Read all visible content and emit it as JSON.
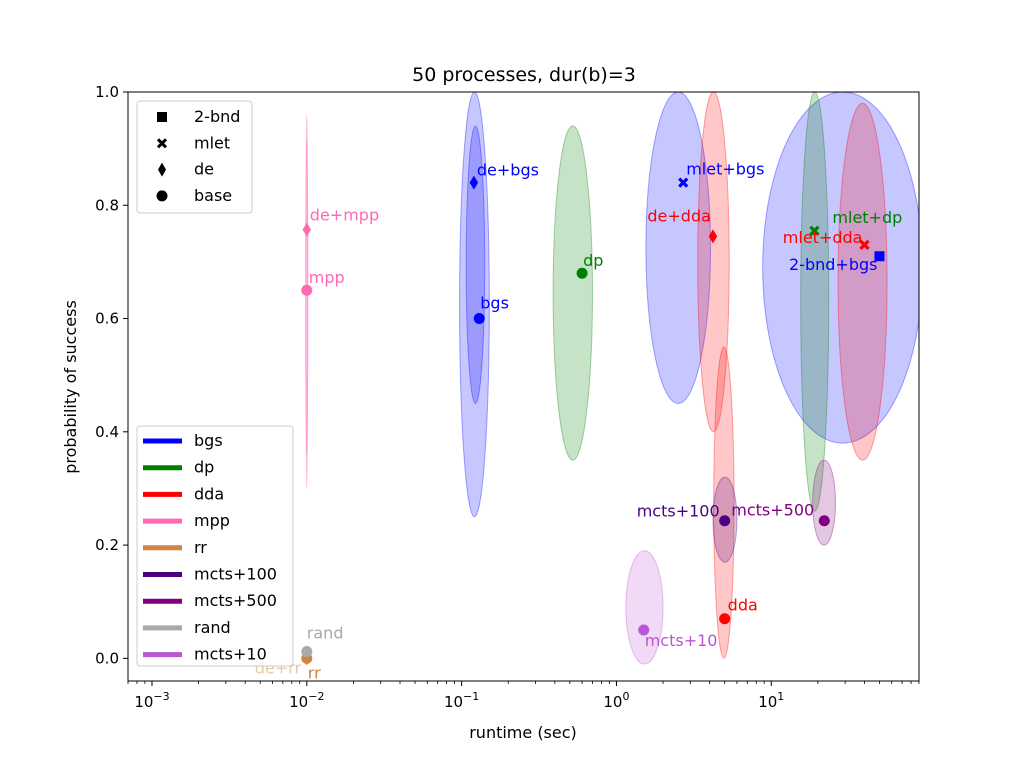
{
  "chart_data": {
    "type": "scatter",
    "title": "50 processes, dur(b)=3",
    "xlabel": "runtime (sec)",
    "ylabel": "probability of success",
    "xscale": "log",
    "xlim": [
      0.0007,
      90
    ],
    "ylim": [
      -0.04,
      1.0
    ],
    "xticks": [
      {
        "value": 0.001,
        "base": "10",
        "exp": "−3"
      },
      {
        "value": 0.01,
        "base": "10",
        "exp": "−2"
      },
      {
        "value": 0.1,
        "base": "10",
        "exp": "−1"
      },
      {
        "value": 1,
        "base": "10",
        "exp": "0"
      },
      {
        "value": 10,
        "base": "10",
        "exp": "1"
      }
    ],
    "yticks": [
      {
        "value": 0.0,
        "label": "0.0"
      },
      {
        "value": 0.2,
        "label": "0.2"
      },
      {
        "value": 0.4,
        "label": "0.4"
      },
      {
        "value": 0.6,
        "label": "0.6"
      },
      {
        "value": 0.8,
        "label": "0.8"
      },
      {
        "value": 1.0,
        "label": "1.0"
      }
    ],
    "colors": {
      "bgs": "#0000ff",
      "dp": "#008000",
      "dda": "#ff0000",
      "mpp": "#ff69b4",
      "rr": "#cd853f",
      "mcts+100": "#4b0082",
      "mcts+500": "#800080",
      "rand": "#a9a9a9",
      "mcts+10": "#ba55d3"
    },
    "marker_legend": [
      {
        "marker": "square",
        "label": "2-bnd"
      },
      {
        "marker": "x",
        "label": "mlet"
      },
      {
        "marker": "diamond",
        "label": "de"
      },
      {
        "marker": "circle",
        "label": "base"
      }
    ],
    "color_legend": [
      "bgs",
      "dp",
      "dda",
      "mpp",
      "rr",
      "mcts+100",
      "mcts+500",
      "rand",
      "mcts+10"
    ],
    "points": [
      {
        "label": "bgs",
        "group": "bgs",
        "marker": "circle",
        "x": 0.13,
        "y": 0.6,
        "ell": {
          "x0": 0.097,
          "x1": 0.151,
          "y0": 0.25,
          "y1": 1.0
        }
      },
      {
        "label": "de+bgs",
        "group": "bgs",
        "marker": "diamond",
        "x": 0.12,
        "y": 0.84,
        "ell": {
          "x0": 0.107,
          "x1": 0.141,
          "y0": 0.45,
          "y1": 0.94
        }
      },
      {
        "label": "mlet+bgs",
        "group": "bgs",
        "marker": "x",
        "x": 2.7,
        "y": 0.84,
        "ell": {
          "x0": 1.55,
          "x1": 4.05,
          "y0": 0.45,
          "y1": 1.0
        }
      },
      {
        "label": "2-bnd+bgs",
        "group": "bgs",
        "marker": "square",
        "x": 50,
        "y": 0.71,
        "ell": {
          "x0": 8.8,
          "x1": 95,
          "y0": 0.38,
          "y1": 1.0
        }
      },
      {
        "label": "dp",
        "group": "dp",
        "marker": "circle",
        "x": 0.6,
        "y": 0.68,
        "ell": {
          "x0": 0.39,
          "x1": 0.7,
          "y0": 0.35,
          "y1": 0.94
        }
      },
      {
        "label": "mlet+dp",
        "group": "dp",
        "marker": "x",
        "x": 19,
        "y": 0.755,
        "ell": {
          "x0": 15.5,
          "x1": 23.5,
          "y0": 0.26,
          "y1": 1.0
        }
      },
      {
        "label": "dda",
        "group": "dda",
        "marker": "circle",
        "x": 5.0,
        "y": 0.07,
        "ell": {
          "x0": 4.25,
          "x1": 5.75,
          "y0": 0.0,
          "y1": 0.55
        }
      },
      {
        "label": "de+dda",
        "group": "dda",
        "marker": "diamond",
        "x": 4.2,
        "y": 0.745,
        "ell": {
          "x0": 3.35,
          "x1": 5.35,
          "y0": 0.4,
          "y1": 1.0
        }
      },
      {
        "label": "mlet+dda",
        "group": "dda",
        "marker": "x",
        "x": 40,
        "y": 0.73,
        "ell": {
          "x0": 27,
          "x1": 56,
          "y0": 0.35,
          "y1": 0.98
        }
      },
      {
        "label": "mpp",
        "group": "mpp",
        "marker": "circle",
        "x": 0.01,
        "y": 0.65,
        "ell": {
          "x0": 0.00985,
          "x1": 0.01015,
          "y0": 0.36,
          "y1": 0.92
        }
      },
      {
        "label": "de+mpp",
        "group": "mpp",
        "marker": "diamond",
        "x": 0.01,
        "y": 0.757,
        "ell": {
          "x0": 0.00985,
          "x1": 0.01015,
          "y0": 0.3,
          "y1": 0.96
        }
      },
      {
        "label": "rr",
        "group": "rr",
        "marker": "circle",
        "x": 0.01,
        "y": 0.0
      },
      {
        "label": "de+rr",
        "group": "rr",
        "marker": "diamond",
        "x": 0.01,
        "y": 0.0
      },
      {
        "label": "rand",
        "group": "rand",
        "marker": "circle",
        "x": 0.01,
        "y": 0.012
      },
      {
        "label": "mcts+10",
        "group": "mcts+10",
        "marker": "circle",
        "x": 1.5,
        "y": 0.05,
        "ell": {
          "x0": 1.15,
          "x1": 2.0,
          "y0": -0.01,
          "y1": 0.19
        }
      },
      {
        "label": "mcts+100",
        "group": "mcts+100",
        "marker": "circle",
        "x": 5.0,
        "y": 0.243,
        "ell": {
          "x0": 4.2,
          "x1": 6.0,
          "y0": 0.17,
          "y1": 0.32
        }
      },
      {
        "label": "mcts+500",
        "group": "mcts+500",
        "marker": "circle",
        "x": 22,
        "y": 0.243,
        "ell": {
          "x0": 18.5,
          "x1": 26,
          "y0": 0.2,
          "y1": 0.35
        }
      }
    ]
  }
}
